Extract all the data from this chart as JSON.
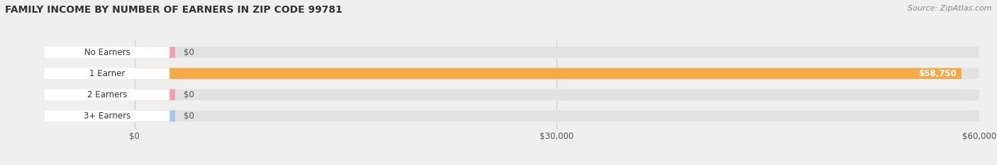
{
  "title": "FAMILY INCOME BY NUMBER OF EARNERS IN ZIP CODE 99781",
  "source": "Source: ZipAtlas.com",
  "categories": [
    "No Earners",
    "1 Earner",
    "2 Earners",
    "3+ Earners"
  ],
  "values": [
    0,
    58750,
    0,
    0
  ],
  "max_value": 60000,
  "bar_colors": [
    "#f4a0b0",
    "#f5a947",
    "#f4a0b0",
    "#a8c4e8"
  ],
  "bar_value_labels": [
    "$0",
    "$58,750",
    "$0",
    "$0"
  ],
  "bg_color": "#efefef",
  "bar_bg_color": "#e2e2e2",
  "x_ticks": [
    0,
    30000,
    60000
  ],
  "x_tick_labels": [
    "$0",
    "$30,000",
    "$60,000"
  ],
  "title_fontsize": 10,
  "source_fontsize": 8,
  "bar_height": 0.52,
  "bar_value_color_inside": "#ffffff",
  "bar_value_color_outside": "#555555"
}
